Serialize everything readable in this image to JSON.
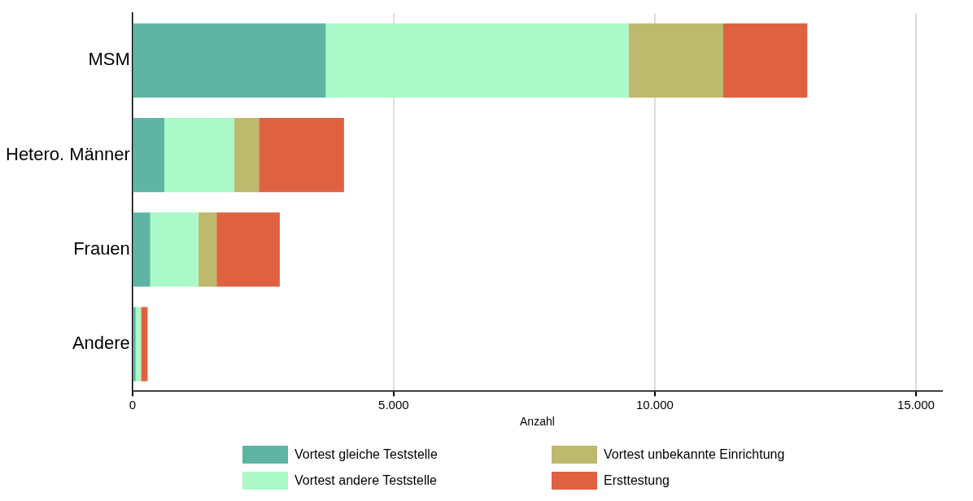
{
  "chart_data": {
    "type": "bar",
    "orientation": "horizontal",
    "stacked": true,
    "xlabel": "Anzahl",
    "categories": [
      "MSM",
      "Hetero. Männer",
      "Frauen",
      "Andere"
    ],
    "series": [
      {
        "name": "Vortest gleiche Teststelle",
        "color": "#5eb5a3",
        "values": [
          3700,
          610,
          340,
          60
        ]
      },
      {
        "name": "Vortest andere Teststelle",
        "color": "#abf9c8",
        "values": [
          5800,
          1340,
          920,
          90
        ]
      },
      {
        "name": "Vortest unbekannte Einrichtung",
        "color": "#bdb96d",
        "values": [
          1810,
          470,
          350,
          20
        ]
      },
      {
        "name": "Ersttestung",
        "color": "#de6242",
        "values": [
          1610,
          1630,
          1210,
          120
        ]
      }
    ],
    "xlim": [
      0,
      15500
    ],
    "xticks": [
      {
        "value": 0,
        "label": "0"
      },
      {
        "value": 5000,
        "label": "5.000"
      },
      {
        "value": 10000,
        "label": "10.000"
      },
      {
        "value": 15000,
        "label": "15.000"
      }
    ],
    "grid": "x",
    "legend": "bottom"
  }
}
